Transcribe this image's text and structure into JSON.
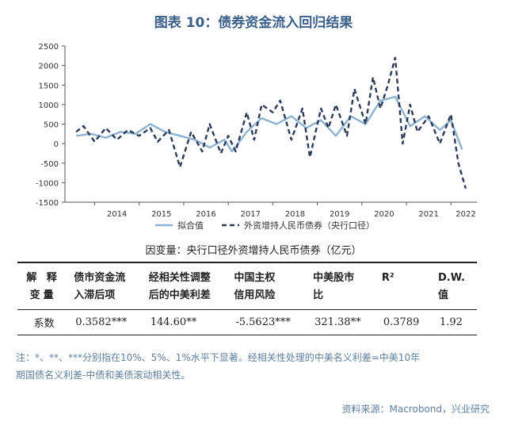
{
  "title": "图表 10：债券资金流入回归结果",
  "chart_data": {
    "type": "line",
    "x_ticks": [
      "2014",
      "2015",
      "2016",
      "2017",
      "2018",
      "2019",
      "2020",
      "2021",
      "2022"
    ],
    "y_ticks": [
      2500,
      2000,
      1500,
      1000,
      500,
      0,
      -500,
      -1000,
      -1500
    ],
    "ylim": [
      -1500,
      2500
    ],
    "grid": false,
    "legend_position": "bottom",
    "series": [
      {
        "name": "拟合值",
        "color": "#8bb3d1",
        "style": "solid",
        "x": [
          "2013-08",
          "2013-12",
          "2014-04",
          "2014-08",
          "2014-12",
          "2015-04",
          "2015-08",
          "2015-12",
          "2016-04",
          "2016-08",
          "2016-12",
          "2017-02",
          "2017-06",
          "2017-10",
          "2018-02",
          "2018-06",
          "2018-10",
          "2019-02",
          "2019-06",
          "2019-10",
          "2020-02",
          "2020-06",
          "2020-10",
          "2021-02",
          "2021-06",
          "2021-10",
          "2022-01",
          "2022-04"
        ],
        "values": [
          200,
          250,
          150,
          300,
          250,
          500,
          300,
          200,
          100,
          -100,
          100,
          -200,
          300,
          650,
          500,
          700,
          400,
          600,
          200,
          700,
          500,
          1100,
          1200,
          450,
          700,
          350,
          600,
          -150
        ]
      },
      {
        "name": "外资增持人民币债券（央行口径）",
        "color": "#2c3a59",
        "style": "dashed",
        "x": [
          "2013-08",
          "2013-10",
          "2014-01",
          "2014-04",
          "2014-07",
          "2014-10",
          "2015-01",
          "2015-04",
          "2015-06",
          "2015-09",
          "2015-12",
          "2016-03",
          "2016-06",
          "2016-08",
          "2016-11",
          "2017-01",
          "2017-03",
          "2017-06",
          "2017-08",
          "2017-10",
          "2018-01",
          "2018-03",
          "2018-06",
          "2018-09",
          "2018-11",
          "2019-02",
          "2019-04",
          "2019-06",
          "2019-09",
          "2019-11",
          "2020-02",
          "2020-04",
          "2020-06",
          "2020-08",
          "2020-10",
          "2020-12",
          "2021-02",
          "2021-04",
          "2021-07",
          "2021-10",
          "2022-01",
          "2022-03",
          "2022-05"
        ],
        "values": [
          300,
          450,
          50,
          400,
          100,
          350,
          200,
          400,
          50,
          350,
          -600,
          300,
          -200,
          500,
          -250,
          200,
          -200,
          800,
          100,
          1000,
          800,
          1100,
          100,
          900,
          -350,
          900,
          400,
          1000,
          200,
          1400,
          500,
          1700,
          900,
          1500,
          2200,
          0,
          1000,
          300,
          700,
          0,
          750,
          -500,
          -1150
        ]
      }
    ]
  },
  "dependent_variable": "因变量：央行口径外资增持人民币债券（亿元）",
  "table": {
    "row_header": [
      "解 释",
      "变量"
    ],
    "columns": [
      [
        "债市资金流",
        "入滞后项"
      ],
      [
        "经相关性调整",
        "后的中美利差"
      ],
      [
        "中国主权",
        "信用风险"
      ],
      [
        "中美股市",
        "比"
      ],
      [
        "R²",
        ""
      ],
      [
        "D.W.",
        "值"
      ]
    ],
    "row_label": "系数",
    "values": [
      "0.3582***",
      "144.60**",
      "-5.5623***",
      "321.38**",
      "0.3789",
      "1.92"
    ]
  },
  "note_lines": [
    "注：*、**、***分别指在10%、5%、1%水平下显著。经相关性处理的中美名义利差=中美10年",
    "期国债名义利差-中债和美债滚动相关性。"
  ],
  "source": "资料来源：Macrobond，兴业研究"
}
